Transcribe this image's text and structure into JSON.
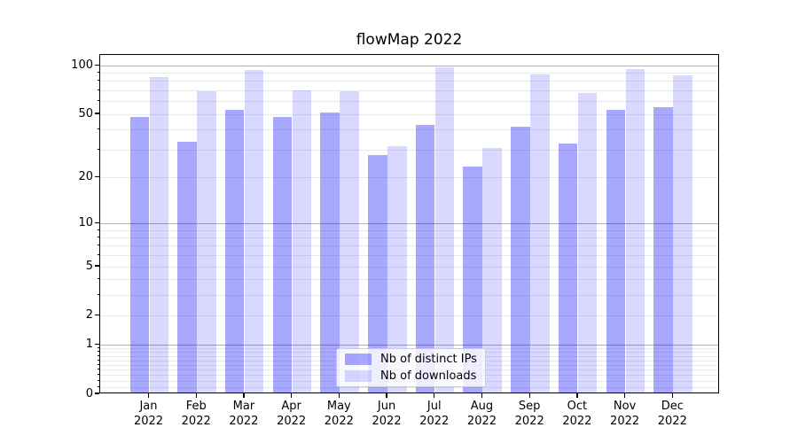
{
  "title": "flowMap 2022",
  "colors": {
    "ips": "rgba(0,0,255,0.34)",
    "downloads": "rgba(0,0,255,0.15)",
    "major_grid": "#b0b0b0",
    "minor_grid": "#e9e9e9",
    "axis": "#000000",
    "legend_border": "#cccccc"
  },
  "legend": {
    "items": [
      {
        "label": "Nb of distinct IPs",
        "color_key": "ips"
      },
      {
        "label": "Nb of downloads",
        "color_key": "downloads"
      }
    ],
    "position": "lower center"
  },
  "y_axis": {
    "tick_labels": [
      "100",
      "50",
      "20",
      "10",
      "5",
      "2",
      "1",
      "0"
    ],
    "tick_values": [
      100,
      50,
      20,
      10,
      5,
      2,
      1,
      0
    ]
  },
  "x_axis": {
    "months": [
      "Jan",
      "Feb",
      "Mar",
      "Apr",
      "May",
      "Jun",
      "Jul",
      "Aug",
      "Sep",
      "Oct",
      "Nov",
      "Dec"
    ],
    "year": "2022"
  },
  "chart_data": {
    "type": "bar",
    "title": "flowMap 2022",
    "categories": [
      "Jan 2022",
      "Feb 2022",
      "Mar 2022",
      "Apr 2022",
      "May 2022",
      "Jun 2022",
      "Jul 2022",
      "Aug 2022",
      "Sep 2022",
      "Oct 2022",
      "Nov 2022",
      "Dec 2022"
    ],
    "series": [
      {
        "name": "Nb of distinct IPs",
        "values": [
          47,
          33,
          52,
          47,
          50,
          27,
          42,
          23,
          41,
          32,
          52,
          54
        ]
      },
      {
        "name": "Nb of downloads",
        "values": [
          83,
          68,
          92,
          69,
          68,
          31,
          95,
          30,
          86,
          66,
          93,
          85
        ]
      }
    ],
    "xlabel": "",
    "ylabel": "",
    "yscale": "log(value+1)",
    "y_ticks": [
      0,
      1,
      2,
      5,
      10,
      20,
      50,
      100
    ],
    "ylim": [
      0,
      117
    ],
    "grid": "on",
    "legend_position": "lower center"
  }
}
